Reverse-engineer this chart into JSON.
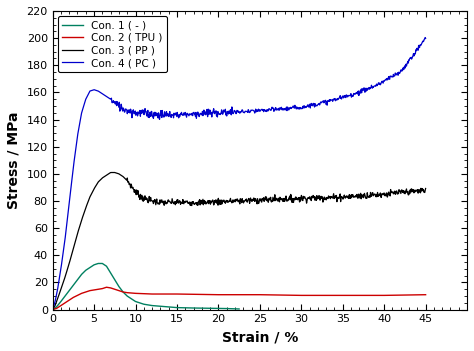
{
  "title": "",
  "xlabel": "Strain / %",
  "ylabel": "Stress / MPa",
  "xlim": [
    0,
    50
  ],
  "ylim": [
    0,
    220
  ],
  "xticks": [
    0,
    5,
    10,
    15,
    20,
    25,
    30,
    35,
    40,
    45
  ],
  "yticks": [
    0,
    20,
    40,
    60,
    80,
    100,
    120,
    140,
    160,
    180,
    200,
    220
  ],
  "legend_labels": [
    "Con. 1 ( - )",
    "Con. 2 ( TPU )",
    "Con. 3 ( PP )",
    "Con. 4 ( PC )"
  ],
  "legend_colors": [
    "#008060",
    "#cc0000",
    "#000000",
    "#0000cc"
  ],
  "background_color": "#ffffff",
  "con1_x": [
    0,
    0.3,
    0.6,
    1.0,
    1.5,
    2.0,
    2.5,
    3.0,
    3.5,
    4.0,
    4.5,
    5.0,
    5.5,
    6.0,
    6.5,
    7.0,
    7.5,
    8.0,
    8.5,
    9.0,
    10.0,
    11.0,
    12.0,
    13.0,
    14.0,
    15.0,
    17.0,
    19.0,
    21.0,
    22.5
  ],
  "con1_y": [
    0,
    1,
    3,
    6,
    10,
    14,
    18,
    22,
    26,
    29,
    31,
    33,
    34,
    34,
    32,
    27,
    22,
    17,
    13,
    10,
    6,
    4,
    3,
    2.5,
    2,
    1.5,
    1.2,
    1.0,
    0.8,
    0.5
  ],
  "con2_x": [
    0,
    0.5,
    1.0,
    1.5,
    2.0,
    2.5,
    3.0,
    3.5,
    4.0,
    4.5,
    5.0,
    5.5,
    6.0,
    6.5,
    7.0,
    7.5,
    8.0,
    8.5,
    9.0,
    10.0,
    12.0,
    15.0,
    20.0,
    25.0,
    30.0,
    35.0,
    40.0,
    45.0
  ],
  "con2_y": [
    0,
    1,
    3,
    5,
    7,
    9,
    10.5,
    12,
    13,
    14,
    14.5,
    15,
    15.5,
    16.5,
    16,
    15,
    14,
    13,
    12.5,
    12,
    11.5,
    11.5,
    11,
    11,
    10.5,
    10.5,
    10.5,
    11
  ],
  "con3_x": [
    0,
    0.3,
    0.6,
    1.0,
    1.5,
    2.0,
    2.5,
    3.0,
    3.5,
    4.0,
    4.5,
    5.0,
    5.5,
    6.0,
    6.5,
    7.0,
    7.5,
    8.0,
    8.5,
    9.0,
    9.5,
    10.0,
    10.5,
    11.0,
    12.0,
    13.0,
    15.0,
    18.0,
    22.0,
    26.0,
    30.0,
    35.0,
    40.0,
    45.0
  ],
  "con3_y": [
    0,
    3,
    8,
    15,
    24,
    34,
    45,
    56,
    66,
    75,
    83,
    89,
    94,
    97,
    99,
    101,
    101,
    100,
    98,
    95,
    91,
    87,
    84,
    82,
    80,
    79,
    79,
    79,
    80,
    81,
    82,
    83,
    85,
    88
  ],
  "con4_x": [
    0,
    0.3,
    0.6,
    1.0,
    1.5,
    2.0,
    2.5,
    3.0,
    3.5,
    4.0,
    4.5,
    5.0,
    5.5,
    6.0,
    6.5,
    7.0,
    7.5,
    8.0,
    8.5,
    9.0,
    9.5,
    10.0,
    11.0,
    12.0,
    13.0,
    14.0,
    15.0,
    16.0,
    17.0,
    18.0,
    20.0,
    22.0,
    24.0,
    26.0,
    28.0,
    30.0,
    33.0,
    36.0,
    39.0,
    42.0,
    45.0
  ],
  "con4_y": [
    0,
    6,
    15,
    30,
    52,
    78,
    105,
    128,
    145,
    155,
    161,
    162,
    161,
    159,
    157,
    155,
    152,
    150,
    148,
    147,
    146,
    145,
    145,
    144,
    143.5,
    143.5,
    143.5,
    144,
    144,
    144.5,
    145,
    145.5,
    146,
    147,
    148,
    149,
    153,
    158,
    165,
    175,
    200
  ]
}
